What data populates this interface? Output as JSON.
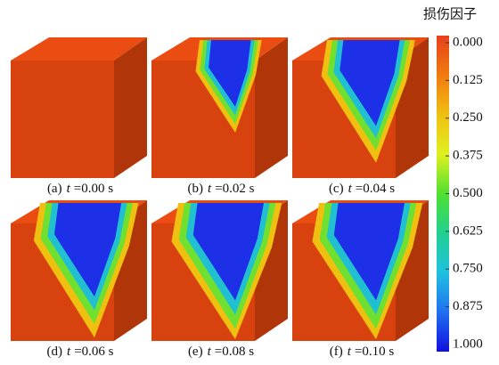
{
  "figure": {
    "panels": [
      {
        "label": "(a)",
        "var": "t",
        "value": "=0.00 s"
      },
      {
        "label": "(b)",
        "var": "t",
        "value": "=0.02 s"
      },
      {
        "label": "(c)",
        "var": "t",
        "value": "=0.04 s"
      },
      {
        "label": "(d)",
        "var": "t",
        "value": "=0.06 s"
      },
      {
        "label": "(e)",
        "var": "t",
        "value": "=0.08 s"
      },
      {
        "label": "(f)",
        "var": "t",
        "value": "=0.10 s"
      }
    ],
    "colorbar": {
      "title": "损伤因子",
      "colors": [
        "#e8401a",
        "#f07a10",
        "#f0c010",
        "#e0f020",
        "#50e030",
        "#20d090",
        "#20c0e0",
        "#2070f0",
        "#1010e0"
      ],
      "lim": [
        0,
        1
      ],
      "ticks": [
        {
          "value": 0,
          "label": "0.000"
        },
        {
          "value": 0.125,
          "label": "0.125"
        },
        {
          "value": 0.25,
          "label": "0.250"
        },
        {
          "value": 0.375,
          "label": "0.375"
        },
        {
          "value": 0.5,
          "label": "0.500"
        },
        {
          "value": 0.625,
          "label": "0.625"
        },
        {
          "value": 0.75,
          "label": "0.750"
        },
        {
          "value": 0.875,
          "label": "0.875"
        },
        {
          "value": 1,
          "label": "1.000"
        }
      ]
    }
  }
}
